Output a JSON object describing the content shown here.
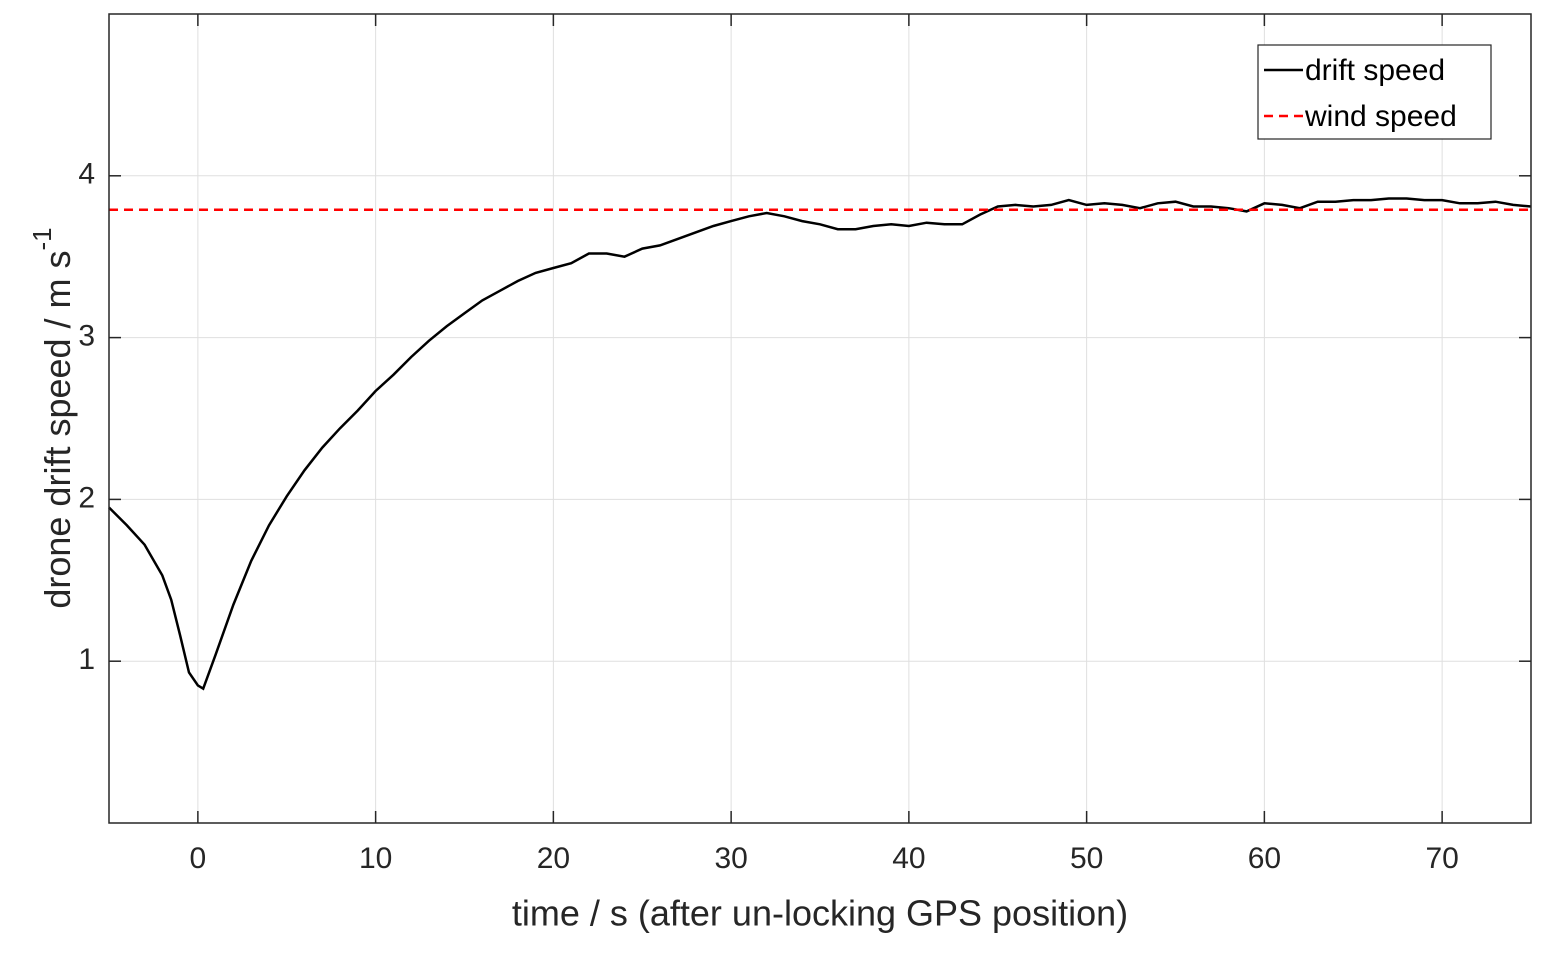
{
  "chart_data": {
    "type": "line",
    "xlabel": "time / s (after un-locking GPS position)",
    "ylabel": "drone drift speed / m s",
    "ylabel_sup": "-1",
    "xlim": [
      -5,
      75
    ],
    "ylim": [
      0,
      5
    ],
    "xticks": [
      0,
      10,
      20,
      30,
      40,
      50,
      60,
      70
    ],
    "yticks": [
      1,
      2,
      3,
      4
    ],
    "grid": true,
    "legend": "northeast",
    "series": [
      {
        "name": "drift speed",
        "color": "#000000",
        "dash": "solid",
        "x": [
          -5,
          -4,
          -3,
          -2,
          -1.5,
          -1,
          -0.5,
          0,
          0.3,
          1,
          2,
          3,
          4,
          5,
          6,
          7,
          8,
          9,
          10,
          11,
          12,
          13,
          14,
          15,
          16,
          17,
          18,
          19,
          20,
          21,
          22,
          23,
          24,
          25,
          26,
          27,
          28,
          29,
          30,
          31,
          32,
          33,
          34,
          35,
          36,
          37,
          38,
          39,
          40,
          41,
          42,
          43,
          44,
          45,
          46,
          47,
          48,
          49,
          50,
          51,
          52,
          53,
          54,
          55,
          56,
          57,
          58,
          59,
          60,
          61,
          62,
          63,
          64,
          65,
          66,
          67,
          68,
          69,
          70,
          71,
          72,
          73,
          74,
          75
        ],
        "values": [
          1.95,
          1.84,
          1.72,
          1.53,
          1.38,
          1.16,
          0.93,
          0.85,
          0.83,
          1.04,
          1.35,
          1.62,
          1.84,
          2.02,
          2.18,
          2.32,
          2.44,
          2.55,
          2.67,
          2.77,
          2.88,
          2.98,
          3.07,
          3.15,
          3.23,
          3.29,
          3.35,
          3.4,
          3.43,
          3.46,
          3.52,
          3.52,
          3.5,
          3.55,
          3.57,
          3.61,
          3.65,
          3.69,
          3.72,
          3.75,
          3.77,
          3.75,
          3.72,
          3.7,
          3.67,
          3.67,
          3.69,
          3.7,
          3.69,
          3.71,
          3.7,
          3.7,
          3.76,
          3.81,
          3.82,
          3.81,
          3.82,
          3.85,
          3.82,
          3.83,
          3.82,
          3.8,
          3.83,
          3.84,
          3.81,
          3.81,
          3.8,
          3.78,
          3.83,
          3.82,
          3.8,
          3.84,
          3.84,
          3.85,
          3.85,
          3.86,
          3.86,
          3.85,
          3.85,
          3.83,
          3.83,
          3.84,
          3.82,
          3.81
        ]
      },
      {
        "name": "wind speed",
        "color": "#ff0000",
        "dash": "dashed",
        "x": [
          -5,
          75
        ],
        "values": [
          3.79,
          3.79
        ]
      }
    ]
  }
}
